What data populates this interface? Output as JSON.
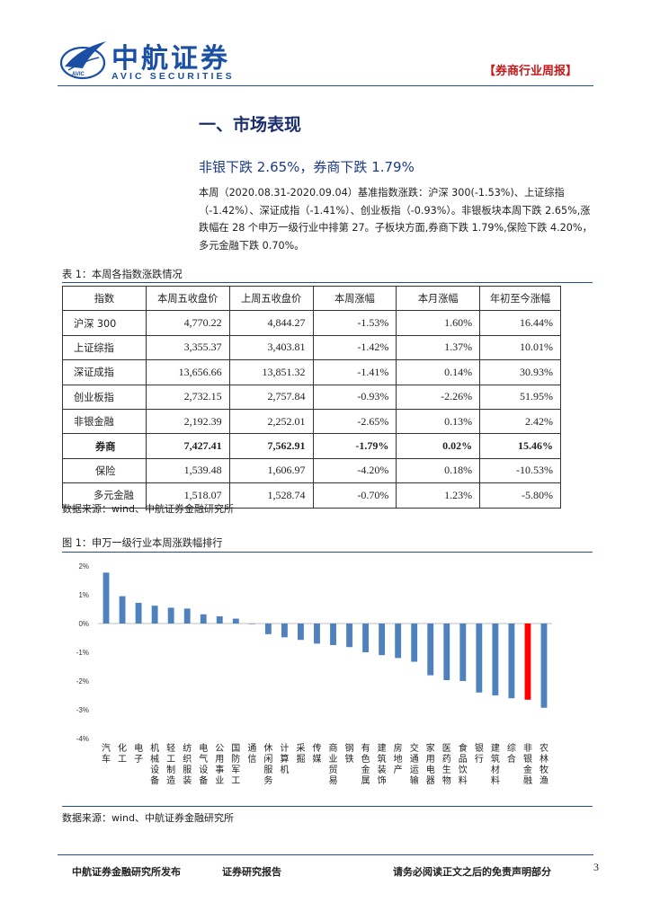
{
  "header": {
    "logo_cn": "中航证券",
    "logo_en": "AVIC SECURITIES",
    "logo_emblem_text": "AVIC",
    "report_tag": "【券商行业周报】"
  },
  "section": {
    "title": "一、市场表现",
    "subtitle": "非银下跌 2.65%，券商下跌 1.79%",
    "body": "本周（2020.08.31-2020.09.04）基准指数涨跌：沪深 300(-1.53%)、上证综指（-1.42%）、深证成指（-1.41%）、创业板指（-0.93%）。非银板块本周下跌 2.65%,涨跌幅在 28 个申万一级行业中排第 27。子板块方面,券商下跌 1.79%,保险下跌 4.20%，多元金融下跌 0.70%。"
  },
  "table": {
    "caption": "表 1：本周各指数涨跌情况",
    "headers": [
      "指数",
      "本周五收盘价",
      "上周五收盘价",
      "本周涨幅",
      "本月涨幅",
      "年初至今涨幅"
    ],
    "rows": [
      [
        "沪深 300",
        "4,770.22",
        "4,844.27",
        "-1.53%",
        "1.60%",
        "16.44%"
      ],
      [
        "上证综指",
        "3,355.37",
        "3,403.81",
        "-1.42%",
        "1.37%",
        "10.01%"
      ],
      [
        "深证成指",
        "13,656.66",
        "13,851.32",
        "-1.41%",
        "0.14%",
        "30.93%"
      ],
      [
        "创业板指",
        "2,732.15",
        "2,757.84",
        "-0.93%",
        "-2.26%",
        "51.95%"
      ],
      [
        "非银金融",
        "2,192.39",
        "2,252.01",
        "-2.65%",
        "0.13%",
        "2.42%"
      ],
      [
        "券商",
        "7,427.41",
        "7,562.91",
        "-1.79%",
        "0.02%",
        "15.46%"
      ],
      [
        "保险",
        "1,539.48",
        "1,606.97",
        "-4.20%",
        "0.18%",
        "-10.53%"
      ],
      [
        "多元金融",
        "1,518.07",
        "1,528.74",
        "-0.70%",
        "1.23%",
        "-5.80%"
      ]
    ],
    "source": "数据来源：wind、中航证券金融研究所"
  },
  "figure": {
    "caption": "图 1：申万一级行业本周涨跌幅排行",
    "source": "数据来源：wind、中航证券金融研究所"
  },
  "chart_data": {
    "type": "bar",
    "title": "",
    "xlabel": "",
    "ylabel": "",
    "ylim": [
      -4,
      2
    ],
    "yticks": [
      "2%",
      "1%",
      "0%",
      "-1%",
      "-2%",
      "-3%",
      "-4%"
    ],
    "categories": [
      "汽车",
      "化工",
      "电子",
      "机械设备",
      "轻工制造",
      "纺织服装",
      "电气设备",
      "公用事业",
      "国防军工",
      "通信",
      "休闲服务",
      "计算机",
      "采掘",
      "传媒",
      "商业贸易",
      "钢铁",
      "有色金属",
      "建筑装饰",
      "房地产",
      "交通运输",
      "家用电器",
      "医药生物",
      "食品饮料",
      "银行",
      "建筑材料",
      "综合",
      "非银金融",
      "农林牧渔"
    ],
    "values": [
      1.77,
      0.95,
      0.72,
      0.62,
      0.55,
      0.52,
      0.32,
      0.25,
      0.17,
      -0.02,
      -0.37,
      -0.48,
      -0.57,
      -0.7,
      -0.75,
      -0.82,
      -1.0,
      -1.1,
      -1.2,
      -1.33,
      -1.8,
      -1.97,
      -2.0,
      -2.4,
      -2.5,
      -2.6,
      -2.65,
      -2.93
    ],
    "bar_color": "#4f81bd",
    "highlight_color": "#ff0000",
    "highlight_category": "非银金融",
    "grid": false,
    "legend": "none"
  },
  "footer": {
    "left": "中航证券金融研究所发布",
    "middle": "证券研究报告",
    "right": "请务必阅读正文之后的免责声明部分",
    "page": "3"
  }
}
